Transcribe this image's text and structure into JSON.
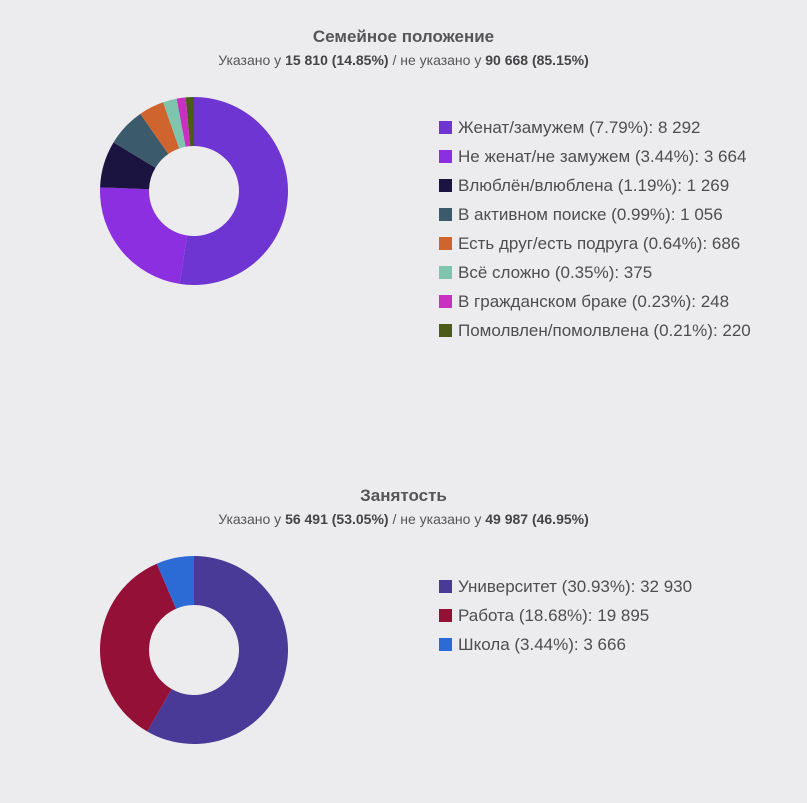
{
  "chart_data": [
    {
      "type": "pie",
      "title": "Семейное положение",
      "subtitle": {
        "prefix": "Указано у ",
        "specified": "15 810 (14.85%)",
        "middle": " / не указано у ",
        "unspecified": "90 668 (85.15%)"
      },
      "slices": [
        {
          "label": "Женат/замужем (7.79%): 8 292",
          "value": 8292,
          "color": "#6e35d2"
        },
        {
          "label": "Не женат/не замужем (3.44%): 3 664",
          "value": 3664,
          "color": "#8b2fe0"
        },
        {
          "label": "Влюблён/влюблена (1.19%): 1 269",
          "value": 1269,
          "color": "#1c1440"
        },
        {
          "label": "В активном поиске (0.99%): 1 056",
          "value": 1056,
          "color": "#3b5a6b"
        },
        {
          "label": "Есть друг/есть подруга (0.64%): 686",
          "value": 686,
          "color": "#d0642e"
        },
        {
          "label": "Всё сложно (0.35%): 375",
          "value": 375,
          "color": "#7fc4ad"
        },
        {
          "label": "В гражданском браке (0.23%): 248",
          "value": 248,
          "color": "#c930c1"
        },
        {
          "label": "Помолвлен/помолвлена (0.21%): 220",
          "value": 220,
          "color": "#4e5a18"
        }
      ]
    },
    {
      "type": "pie",
      "title": "Занятость",
      "subtitle": {
        "prefix": "Указано у ",
        "specified": "56 491 (53.05%)",
        "middle": " / не указано у ",
        "unspecified": "49 987 (46.95%)"
      },
      "slices": [
        {
          "label": "Университет (30.93%): 32 930",
          "value": 32930,
          "color": "#4a3a98"
        },
        {
          "label": "Работа (18.68%): 19 895",
          "value": 19895,
          "color": "#951037"
        },
        {
          "label": "Школа (3.44%): 3 666",
          "value": 3666,
          "color": "#2c6bd6"
        }
      ]
    }
  ]
}
